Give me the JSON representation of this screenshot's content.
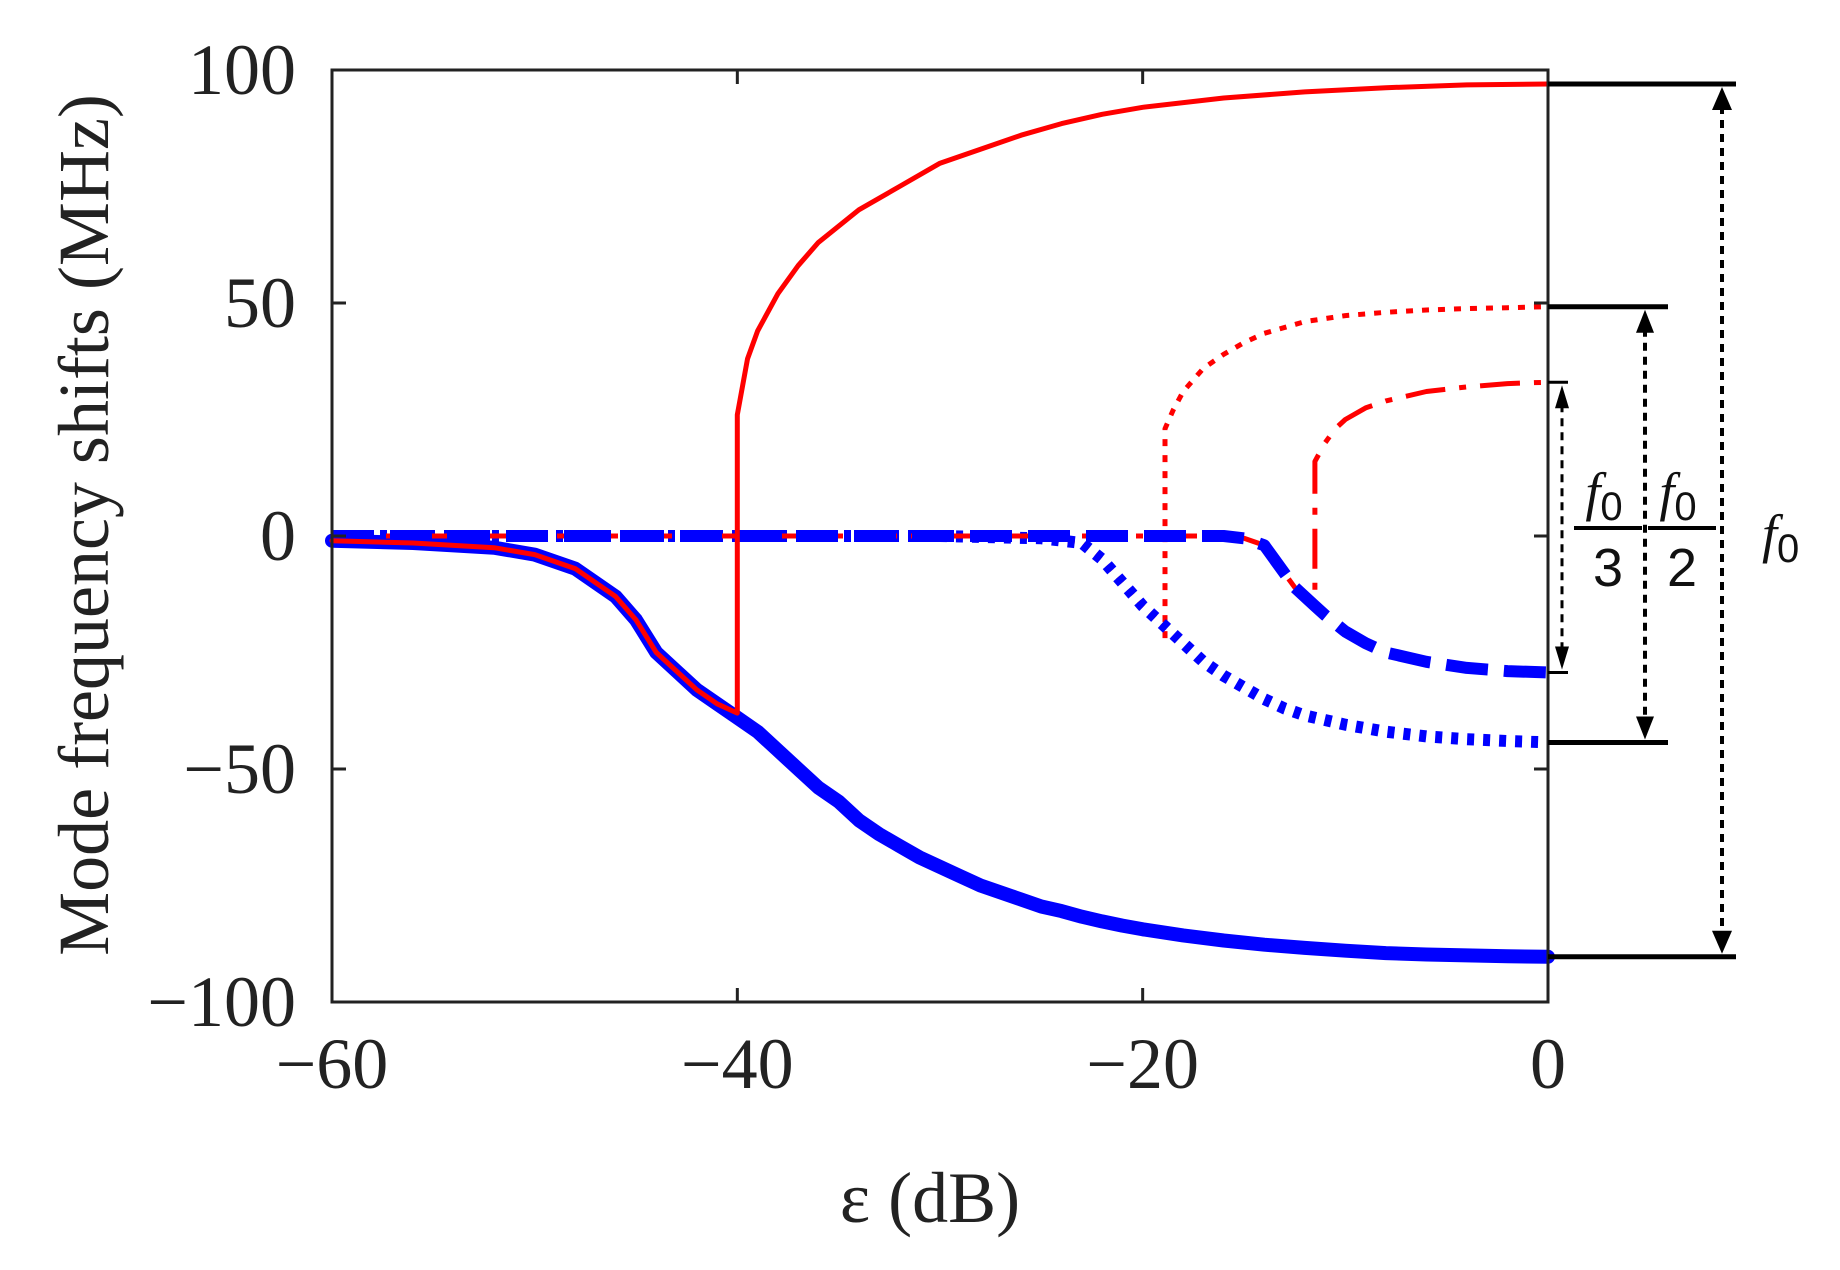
{
  "chart_data": {
    "type": "line",
    "xlabel": "ε (dB)",
    "ylabel": "Mode frequency shifts (MHz)",
    "xlim": [
      -60,
      0
    ],
    "ylim": [
      -100,
      100
    ],
    "xticks": [
      -60,
      -40,
      -20,
      0
    ],
    "yticks": [
      -100,
      -50,
      0,
      50,
      100
    ],
    "xtick_labels": [
      "−60",
      "−40",
      "−20",
      "0"
    ],
    "ytick_labels": [
      "−100",
      "−50",
      "0",
      "50",
      "100"
    ],
    "grid": false,
    "colors": {
      "red": "#ff0000",
      "blue": "#0000ff",
      "black": "#000000"
    },
    "series": [
      {
        "color": "#ff0000",
        "style": "solid",
        "width": 5,
        "points": [
          [
            -60,
            -1
          ],
          [
            -56,
            -1.5
          ],
          [
            -52,
            -2.5
          ],
          [
            -50,
            -4
          ],
          [
            -48,
            -7
          ],
          [
            -46,
            -13
          ],
          [
            -45,
            -18
          ],
          [
            -44,
            -25
          ],
          [
            -43,
            -29
          ],
          [
            -42,
            -33
          ],
          [
            -41,
            -36
          ],
          [
            -40,
            -38
          ],
          [
            -40,
            26
          ],
          [
            -39.5,
            38
          ],
          [
            -39,
            44
          ],
          [
            -38,
            52
          ],
          [
            -37,
            58
          ],
          [
            -36,
            63
          ],
          [
            -34,
            70
          ],
          [
            -32,
            75
          ],
          [
            -30,
            80
          ],
          [
            -28,
            83
          ],
          [
            -26,
            86
          ],
          [
            -24,
            88.5
          ],
          [
            -22,
            90.5
          ],
          [
            -20,
            92
          ],
          [
            -16,
            94
          ],
          [
            -12,
            95.3
          ],
          [
            -8,
            96.2
          ],
          [
            -4,
            96.8
          ],
          [
            0,
            97
          ]
        ]
      },
      {
        "color": "#0000ff",
        "style": "solid",
        "width": 14,
        "points": [
          [
            -60,
            -1
          ],
          [
            -56,
            -1.5
          ],
          [
            -52,
            -2.5
          ],
          [
            -50,
            -4
          ],
          [
            -48,
            -7
          ],
          [
            -46,
            -13
          ],
          [
            -45,
            -18
          ],
          [
            -44,
            -25
          ],
          [
            -43,
            -29
          ],
          [
            -42,
            -33
          ],
          [
            -41,
            -36
          ],
          [
            -40,
            -39
          ],
          [
            -39,
            -42
          ],
          [
            -38,
            -46
          ],
          [
            -37,
            -50
          ],
          [
            -36,
            -54
          ],
          [
            -35,
            -57
          ],
          [
            -34,
            -61
          ],
          [
            -33,
            -64
          ],
          [
            -32,
            -66.5
          ],
          [
            -31,
            -69
          ],
          [
            -30,
            -71
          ],
          [
            -29,
            -73
          ],
          [
            -28,
            -75
          ],
          [
            -27,
            -76.5
          ],
          [
            -26,
            -78
          ],
          [
            -25,
            -79.5
          ],
          [
            -24,
            -80.5
          ],
          [
            -23,
            -81.7
          ],
          [
            -22,
            -82.7
          ],
          [
            -21,
            -83.6
          ],
          [
            -20,
            -84.4
          ],
          [
            -18,
            -85.7
          ],
          [
            -16,
            -86.8
          ],
          [
            -14,
            -87.7
          ],
          [
            -12,
            -88.4
          ],
          [
            -10,
            -89
          ],
          [
            -8,
            -89.5
          ],
          [
            -6,
            -89.8
          ],
          [
            -4,
            -90
          ],
          [
            -2,
            -90.2
          ],
          [
            0,
            -90.3
          ]
        ]
      },
      {
        "color": "#ff0000",
        "style": "dotted",
        "width": 5,
        "points": [
          [
            -60,
            0
          ],
          [
            -40,
            0
          ],
          [
            -30,
            0
          ],
          [
            -25,
            -0.5
          ],
          [
            -23,
            -1.5
          ],
          [
            -22,
            -5
          ],
          [
            -21,
            -10
          ],
          [
            -20,
            -15
          ],
          [
            -19,
            -19
          ],
          [
            -18.9,
            -22
          ],
          [
            -18.9,
            23
          ],
          [
            -18.5,
            27
          ],
          [
            -18,
            31
          ],
          [
            -17,
            36
          ],
          [
            -16,
            39
          ],
          [
            -15,
            41.5
          ],
          [
            -14,
            43.5
          ],
          [
            -12,
            46
          ],
          [
            -10,
            47.3
          ],
          [
            -8,
            48
          ],
          [
            -6,
            48.5
          ],
          [
            -4,
            48.8
          ],
          [
            -2,
            49
          ],
          [
            0,
            49.2
          ]
        ]
      },
      {
        "color": "#0000ff",
        "style": "dotted",
        "width": 12,
        "points": [
          [
            -60,
            0
          ],
          [
            -40,
            0
          ],
          [
            -30,
            0
          ],
          [
            -25,
            -0.5
          ],
          [
            -23,
            -1.5
          ],
          [
            -22,
            -5
          ],
          [
            -21,
            -10
          ],
          [
            -20,
            -15
          ],
          [
            -19,
            -19
          ],
          [
            -18,
            -23
          ],
          [
            -17,
            -27
          ],
          [
            -16,
            -30
          ],
          [
            -15,
            -32.5
          ],
          [
            -14,
            -35
          ],
          [
            -13,
            -37
          ],
          [
            -12,
            -38.5
          ],
          [
            -10,
            -40.5
          ],
          [
            -8,
            -42
          ],
          [
            -6,
            -43
          ],
          [
            -4,
            -43.6
          ],
          [
            -2,
            -44
          ],
          [
            0,
            -44.3
          ]
        ]
      },
      {
        "color": "#ff0000",
        "style": "dashdot",
        "width": 5,
        "points": [
          [
            -60,
            0
          ],
          [
            -40,
            0
          ],
          [
            -20,
            0
          ],
          [
            -16,
            0
          ],
          [
            -15,
            -0.5
          ],
          [
            -14,
            -2
          ],
          [
            -13.5,
            -5
          ],
          [
            -13,
            -8
          ],
          [
            -12.5,
            -11
          ],
          [
            -11.5,
            -15
          ],
          [
            -11.5,
            16
          ],
          [
            -11,
            20
          ],
          [
            -10.5,
            23
          ],
          [
            -10,
            25
          ],
          [
            -9,
            27.5
          ],
          [
            -8,
            29
          ],
          [
            -6,
            31
          ],
          [
            -4,
            32
          ],
          [
            -2,
            32.7
          ],
          [
            0,
            33
          ]
        ]
      },
      {
        "color": "#0000ff",
        "style": "dashed",
        "width": 12,
        "points": [
          [
            -60,
            0
          ],
          [
            -40,
            0
          ],
          [
            -20,
            0
          ],
          [
            -16,
            0
          ],
          [
            -15,
            -0.5
          ],
          [
            -14,
            -2
          ],
          [
            -13.5,
            -5
          ],
          [
            -13,
            -8
          ],
          [
            -12.5,
            -11
          ],
          [
            -11.5,
            -15
          ],
          [
            -11,
            -17
          ],
          [
            -10,
            -20.5
          ],
          [
            -9,
            -23
          ],
          [
            -8,
            -25
          ],
          [
            -6,
            -27
          ],
          [
            -4,
            -28.3
          ],
          [
            -2,
            -29
          ],
          [
            0,
            -29.3
          ]
        ]
      }
    ],
    "annotations": [
      {
        "text": "f0",
        "numerator": "f0",
        "denominator": "3",
        "from": 33,
        "to": -29.3
      },
      {
        "text": "f0",
        "numerator": "f0",
        "denominator": "2",
        "from": 49.2,
        "to": -44.3
      },
      {
        "text": "f0",
        "numerator": "f0",
        "denominator": "",
        "from": 97,
        "to": -90.3
      }
    ]
  },
  "labels": {
    "f_letter": "f",
    "f_sub": "0"
  }
}
